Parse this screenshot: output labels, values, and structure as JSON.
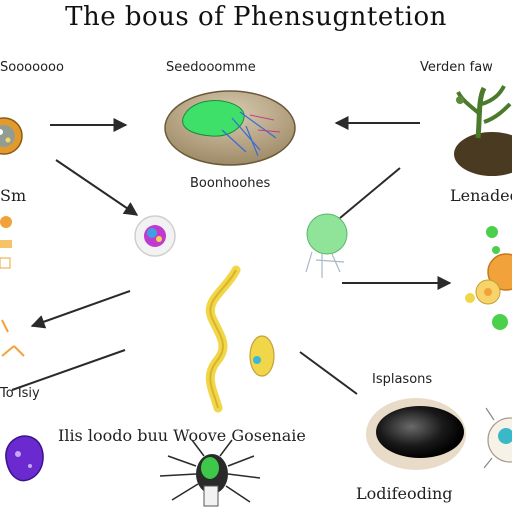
{
  "title": "The bous of Phensugntetion",
  "labels": {
    "top_left": "Sooooooo",
    "top_center": "Seedooomme",
    "top_right": "Verden faw",
    "under_center_cell": "Boonhoohes",
    "left_mid": "Sm",
    "right_mid": "Lenadeo",
    "left_lower": "To Isiy",
    "right_lower": "Isplasons",
    "bottom_caption": "Ilis loodo buu Woove Gosenaie",
    "bottom_right": "Lodifeoding"
  },
  "colors": {
    "arrow": "#2a2a2a",
    "chloroplast_green": "#3ee06a",
    "leaf_green": "#4a7a2a",
    "soil_brown": "#4a3a22",
    "cell_tan": "#d8c49a",
    "yellow_strand": "#f2d64a",
    "purple_blob": "#6a2ad0"
  }
}
